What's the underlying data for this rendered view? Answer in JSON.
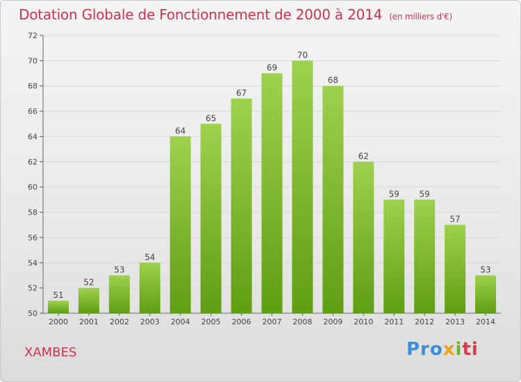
{
  "title": "Dotation Globale de Fonctionnement de 2000 à 2014",
  "subtitle": "(en milliers d'€)",
  "commune": "XAMBES",
  "logo": {
    "p1": "Pro",
    "p2": "x",
    "p3": "i",
    "p4": "ti"
  },
  "colors": {
    "accent": "#d2334f",
    "bar_top": "#9ed14e",
    "bar_bottom": "#5f9e12",
    "grid": "#d8d8d8"
  },
  "chart_data": {
    "type": "bar",
    "title": "Dotation Globale de Fonctionnement de 2000 à 2014",
    "subtitle": "(en milliers d'€)",
    "xlabel": "",
    "ylabel": "",
    "ylim": [
      50,
      72
    ],
    "yticks": [
      50,
      52,
      54,
      56,
      58,
      60,
      62,
      64,
      66,
      68,
      70,
      72
    ],
    "grid": true,
    "categories": [
      "2000",
      "2001",
      "2002",
      "2003",
      "2004",
      "2005",
      "2006",
      "2007",
      "2008",
      "2009",
      "2010",
      "2011",
      "2012",
      "2013",
      "2014"
    ],
    "values": [
      51,
      52,
      53,
      54,
      64,
      65,
      67,
      69,
      70,
      68,
      62,
      59,
      59,
      57,
      53
    ]
  }
}
